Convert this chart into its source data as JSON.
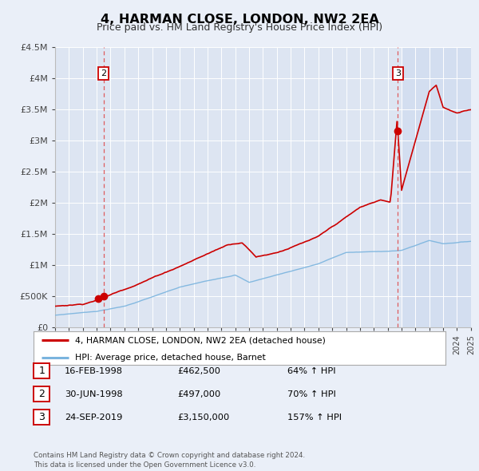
{
  "title": "4, HARMAN CLOSE, LONDON, NW2 2EA",
  "subtitle": "Price paid vs. HM Land Registry's House Price Index (HPI)",
  "background_color": "#eaeff8",
  "plot_bg_color": "#dde5f2",
  "future_bg_color": "#d0dcf0",
  "transactions": [
    {
      "date": 1998.12,
      "price": 462500,
      "label": "1"
    },
    {
      "date": 1998.5,
      "price": 497000,
      "label": "2"
    },
    {
      "date": 2019.73,
      "price": 3150000,
      "label": "3"
    }
  ],
  "sale_labels": [
    {
      "num": "1",
      "date": "16-FEB-1998",
      "price": "£462,500",
      "pct": "64% ↑ HPI"
    },
    {
      "num": "2",
      "date": "30-JUN-1998",
      "price": "£497,000",
      "pct": "70% ↑ HPI"
    },
    {
      "num": "3",
      "date": "24-SEP-2019",
      "price": "£3,150,000",
      "pct": "157% ↑ HPI"
    }
  ],
  "hpi_line_color": "#7ab4de",
  "price_line_color": "#cc0000",
  "dashed_line_color": "#dd4444",
  "ylabel_ticks": [
    "£0",
    "£500K",
    "£1M",
    "£1.5M",
    "£2M",
    "£2.5M",
    "£3M",
    "£3.5M",
    "£4M",
    "£4.5M"
  ],
  "ytick_vals": [
    0,
    500000,
    1000000,
    1500000,
    2000000,
    2500000,
    3000000,
    3500000,
    4000000,
    4500000
  ],
  "xmin": 1995,
  "xmax": 2025,
  "ymin": 0,
  "ymax": 4500000,
  "legend_label_price": "4, HARMAN CLOSE, LONDON, NW2 2EA (detached house)",
  "legend_label_hpi": "HPI: Average price, detached house, Barnet",
  "footer": "Contains HM Land Registry data © Crown copyright and database right 2024.\nThis data is licensed under the Open Government Licence v3.0.",
  "vertical_dash2_x": 1998.5,
  "vertical_dash3_x": 2019.73,
  "future_shade_x": 2020.0
}
